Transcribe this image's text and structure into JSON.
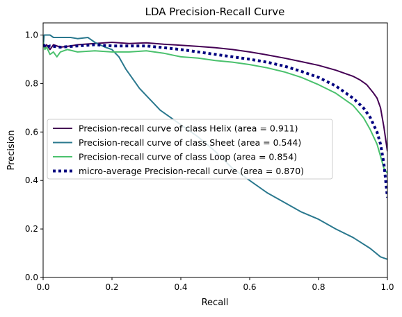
{
  "chart_data": {
    "type": "line",
    "title": "LDA Precision-Recall Curve",
    "xlabel": "Recall",
    "ylabel": "Precision",
    "xlim": [
      0,
      1
    ],
    "ylim": [
      0,
      1.05
    ],
    "xticks": [
      "0.0",
      "0.2",
      "0.4",
      "0.6",
      "0.8",
      "1.0"
    ],
    "yticks": [
      "0.0",
      "0.2",
      "0.4",
      "0.6",
      "0.8",
      "1.0"
    ],
    "legend_position": "center-left",
    "grid": false,
    "series": [
      {
        "name": "Precision-recall curve of class Helix (area = 0.911)",
        "color": "#440154",
        "style": "solid",
        "points": [
          [
            0.0,
            0.97
          ],
          [
            0.005,
            0.95
          ],
          [
            0.01,
            0.96
          ],
          [
            0.02,
            0.94
          ],
          [
            0.03,
            0.96
          ],
          [
            0.05,
            0.95
          ],
          [
            0.08,
            0.955
          ],
          [
            0.1,
            0.96
          ],
          [
            0.15,
            0.965
          ],
          [
            0.2,
            0.97
          ],
          [
            0.25,
            0.965
          ],
          [
            0.3,
            0.968
          ],
          [
            0.35,
            0.962
          ],
          [
            0.4,
            0.958
          ],
          [
            0.45,
            0.953
          ],
          [
            0.5,
            0.948
          ],
          [
            0.55,
            0.94
          ],
          [
            0.6,
            0.93
          ],
          [
            0.65,
            0.918
          ],
          [
            0.7,
            0.905
          ],
          [
            0.75,
            0.89
          ],
          [
            0.8,
            0.875
          ],
          [
            0.85,
            0.855
          ],
          [
            0.88,
            0.84
          ],
          [
            0.9,
            0.83
          ],
          [
            0.92,
            0.815
          ],
          [
            0.94,
            0.795
          ],
          [
            0.96,
            0.76
          ],
          [
            0.97,
            0.74
          ],
          [
            0.98,
            0.7
          ],
          [
            0.99,
            0.62
          ],
          [
            0.995,
            0.57
          ],
          [
            1.0,
            0.52
          ]
        ]
      },
      {
        "name": "Precision-recall curve of class Sheet (area = 0.544)",
        "color": "#2a788e",
        "style": "solid",
        "points": [
          [
            0.0,
            0.95
          ],
          [
            0.003,
            1.0
          ],
          [
            0.02,
            1.0
          ],
          [
            0.03,
            0.99
          ],
          [
            0.08,
            0.99
          ],
          [
            0.1,
            0.985
          ],
          [
            0.13,
            0.99
          ],
          [
            0.15,
            0.97
          ],
          [
            0.18,
            0.95
          ],
          [
            0.2,
            0.94
          ],
          [
            0.22,
            0.91
          ],
          [
            0.24,
            0.86
          ],
          [
            0.26,
            0.82
          ],
          [
            0.28,
            0.78
          ],
          [
            0.3,
            0.75
          ],
          [
            0.32,
            0.72
          ],
          [
            0.34,
            0.69
          ],
          [
            0.36,
            0.67
          ],
          [
            0.38,
            0.65
          ],
          [
            0.4,
            0.63
          ],
          [
            0.45,
            0.58
          ],
          [
            0.5,
            0.52
          ],
          [
            0.55,
            0.45
          ],
          [
            0.6,
            0.4
          ],
          [
            0.65,
            0.35
          ],
          [
            0.7,
            0.31
          ],
          [
            0.75,
            0.27
          ],
          [
            0.8,
            0.24
          ],
          [
            0.85,
            0.2
          ],
          [
            0.9,
            0.165
          ],
          [
            0.95,
            0.12
          ],
          [
            0.98,
            0.085
          ],
          [
            1.0,
            0.075
          ]
        ]
      },
      {
        "name": "Precision-recall curve of class Loop (area = 0.854)",
        "color": "#4ac16d",
        "style": "solid",
        "points": [
          [
            0.0,
            0.97
          ],
          [
            0.005,
            0.94
          ],
          [
            0.01,
            0.95
          ],
          [
            0.02,
            0.92
          ],
          [
            0.03,
            0.93
          ],
          [
            0.04,
            0.91
          ],
          [
            0.05,
            0.93
          ],
          [
            0.07,
            0.94
          ],
          [
            0.1,
            0.93
          ],
          [
            0.15,
            0.935
          ],
          [
            0.2,
            0.93
          ],
          [
            0.25,
            0.93
          ],
          [
            0.3,
            0.935
          ],
          [
            0.35,
            0.925
          ],
          [
            0.4,
            0.91
          ],
          [
            0.45,
            0.905
          ],
          [
            0.5,
            0.895
          ],
          [
            0.55,
            0.888
          ],
          [
            0.6,
            0.878
          ],
          [
            0.65,
            0.865
          ],
          [
            0.7,
            0.848
          ],
          [
            0.75,
            0.825
          ],
          [
            0.8,
            0.795
          ],
          [
            0.85,
            0.76
          ],
          [
            0.9,
            0.71
          ],
          [
            0.93,
            0.66
          ],
          [
            0.95,
            0.61
          ],
          [
            0.97,
            0.55
          ],
          [
            0.98,
            0.5
          ],
          [
            0.99,
            0.45
          ],
          [
            1.0,
            0.43
          ]
        ]
      },
      {
        "name": "micro-average Precision-recall curve (area = 0.870)",
        "color": "#000080",
        "style": "dotted",
        "points": [
          [
            0.0,
            0.96
          ],
          [
            0.01,
            0.95
          ],
          [
            0.02,
            0.955
          ],
          [
            0.05,
            0.95
          ],
          [
            0.1,
            0.955
          ],
          [
            0.15,
            0.96
          ],
          [
            0.2,
            0.955
          ],
          [
            0.25,
            0.955
          ],
          [
            0.3,
            0.955
          ],
          [
            0.35,
            0.948
          ],
          [
            0.4,
            0.94
          ],
          [
            0.45,
            0.93
          ],
          [
            0.5,
            0.92
          ],
          [
            0.55,
            0.91
          ],
          [
            0.6,
            0.9
          ],
          [
            0.65,
            0.888
          ],
          [
            0.7,
            0.872
          ],
          [
            0.75,
            0.85
          ],
          [
            0.8,
            0.825
          ],
          [
            0.85,
            0.79
          ],
          [
            0.9,
            0.74
          ],
          [
            0.93,
            0.7
          ],
          [
            0.95,
            0.66
          ],
          [
            0.97,
            0.6
          ],
          [
            0.98,
            0.55
          ],
          [
            0.99,
            0.47
          ],
          [
            1.0,
            0.33
          ]
        ]
      }
    ]
  }
}
